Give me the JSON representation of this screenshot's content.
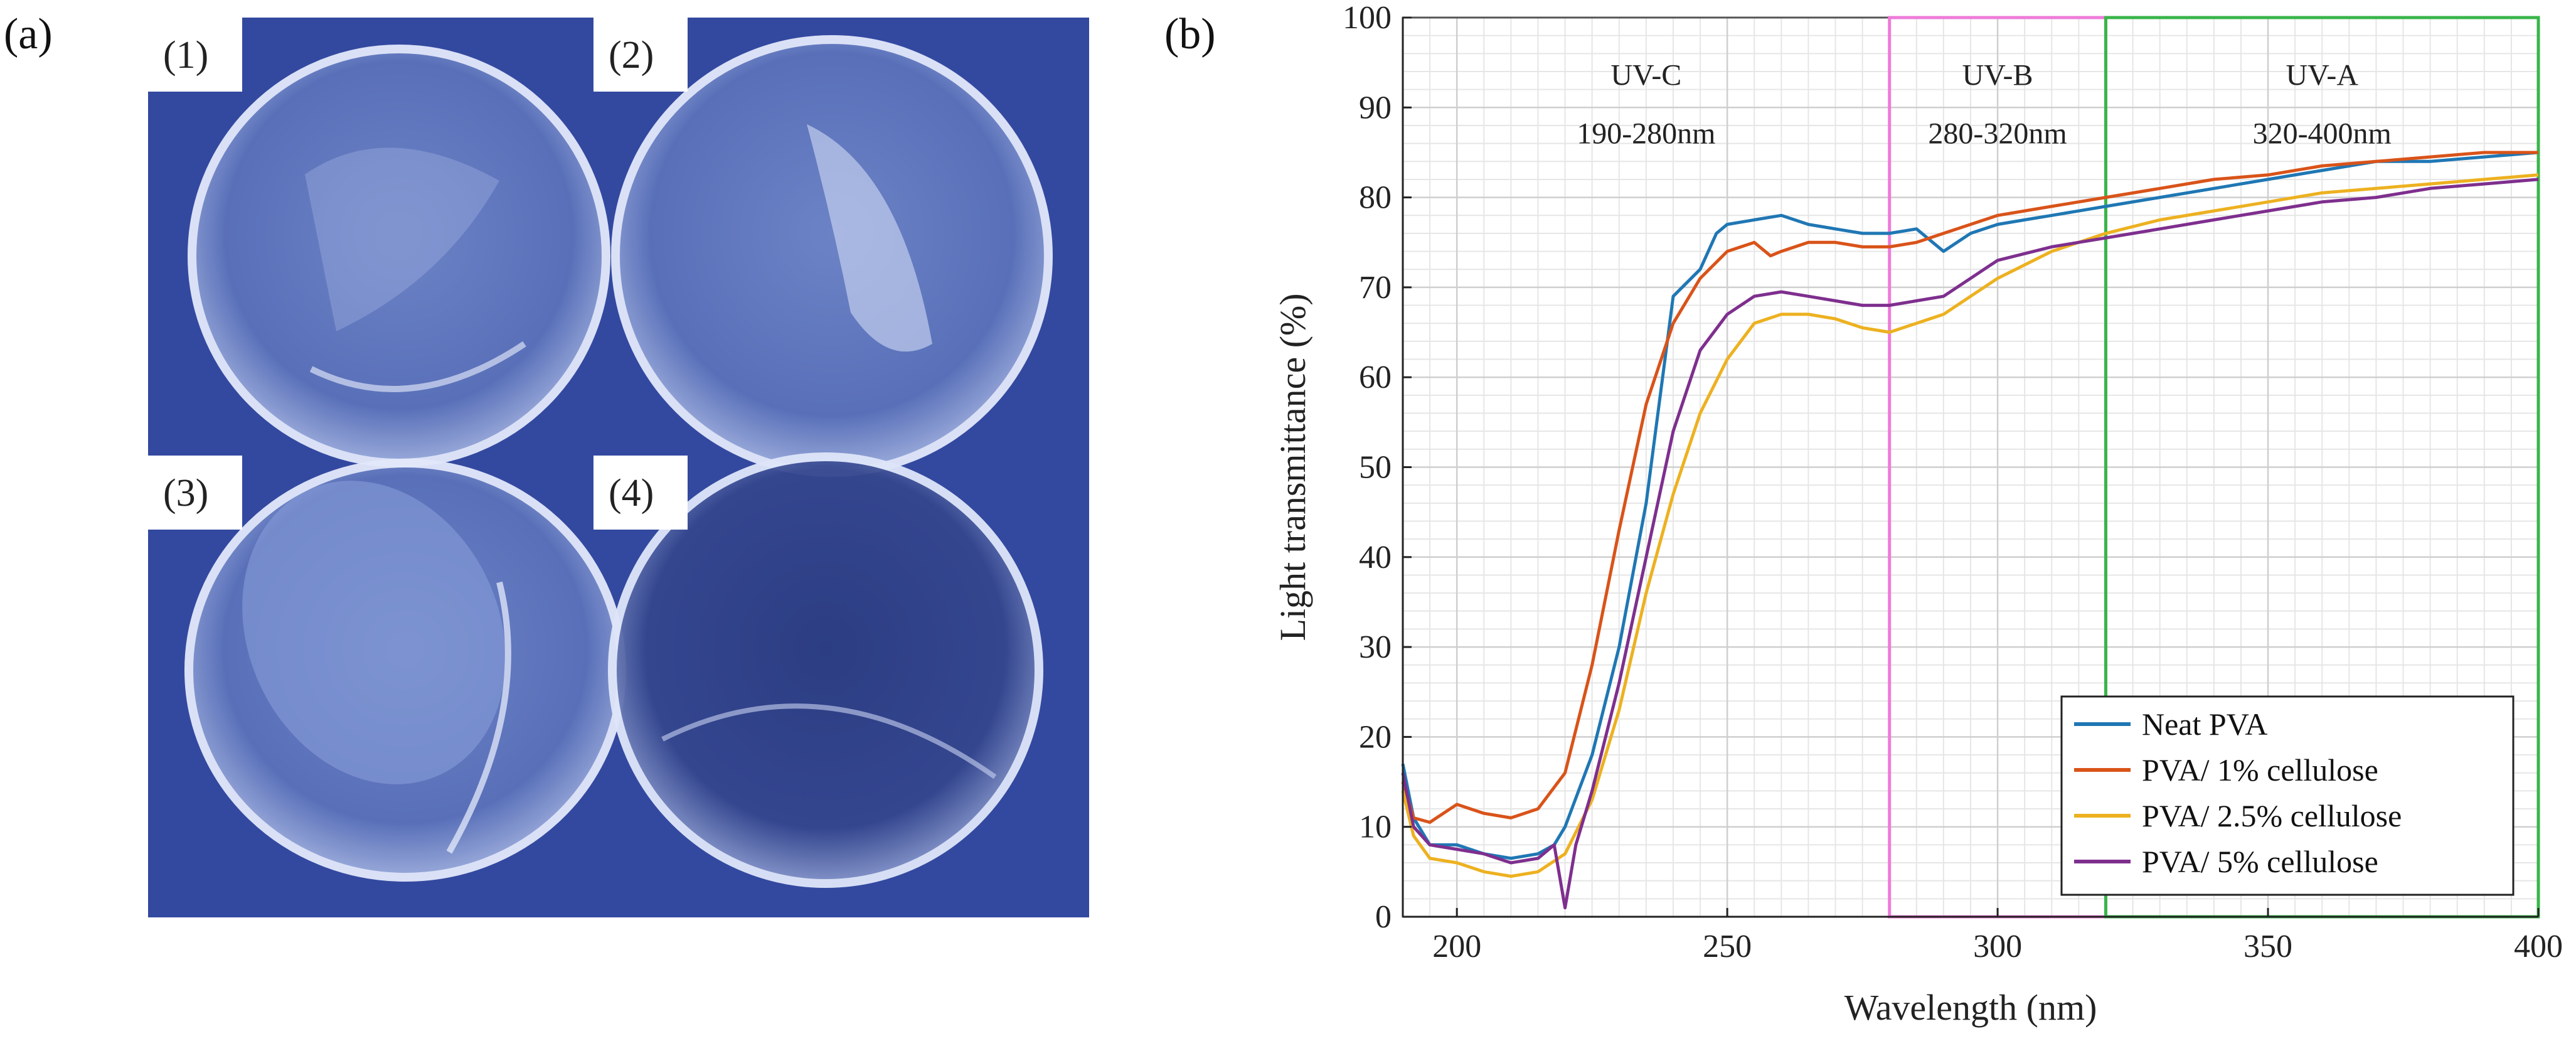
{
  "panels": {
    "a": {
      "label": "(a)",
      "sample_labels": [
        "(1)",
        "(2)",
        "(3)",
        "(4)"
      ]
    },
    "b": {
      "label": "(b)"
    }
  },
  "colors": {
    "photo_background": "#3349a0",
    "uvb_border": "#ee7bd9",
    "uva_border": "#39b54a"
  },
  "chart_data": {
    "type": "line",
    "xlabel": "Wavelength (nm)",
    "ylabel": "Light transmittance (%)",
    "xlim": [
      190,
      400
    ],
    "ylim": [
      0,
      100
    ],
    "xticks": [
      200,
      250,
      300,
      350,
      400
    ],
    "yticks": [
      0,
      10,
      20,
      30,
      40,
      50,
      60,
      70,
      80,
      90,
      100
    ],
    "grid": true,
    "legend_position": "bottom-right",
    "regions": [
      {
        "name": "UV-C",
        "range_label": "190-280nm",
        "start": 190,
        "end": 280,
        "color": "#555555"
      },
      {
        "name": "UV-B",
        "range_label": "280-320nm",
        "start": 280,
        "end": 320,
        "color": "#ee7bd9"
      },
      {
        "name": "UV-A",
        "range_label": "320-400nm",
        "start": 320,
        "end": 400,
        "color": "#39b54a"
      }
    ],
    "series": [
      {
        "name": "Neat PVA",
        "color": "#1f77b4",
        "x": [
          190,
          192,
          195,
          200,
          205,
          210,
          215,
          218,
          220,
          225,
          230,
          235,
          240,
          245,
          248,
          250,
          255,
          260,
          265,
          270,
          275,
          280,
          285,
          288,
          290,
          295,
          300,
          305,
          310,
          320,
          330,
          340,
          350,
          360,
          370,
          380,
          390,
          400
        ],
        "y": [
          17,
          11,
          8,
          8,
          7,
          6.5,
          7,
          8,
          10,
          18,
          30,
          46,
          69,
          72,
          76,
          77,
          77.5,
          78,
          77,
          76.5,
          76,
          76,
          76.5,
          75,
          74,
          76,
          77,
          77.5,
          78,
          79,
          80,
          81,
          82,
          83,
          84,
          84,
          84.5,
          85
        ]
      },
      {
        "name": "PVA/ 1% cellulose",
        "color": "#d95319",
        "x": [
          190,
          192,
          195,
          200,
          205,
          210,
          215,
          220,
          225,
          230,
          235,
          240,
          245,
          250,
          255,
          258,
          260,
          265,
          270,
          275,
          280,
          285,
          290,
          295,
          300,
          310,
          320,
          330,
          340,
          350,
          360,
          370,
          380,
          390,
          400
        ],
        "y": [
          15,
          11,
          10.5,
          12.5,
          11.5,
          11,
          12,
          16,
          28,
          43,
          57,
          66,
          71,
          74,
          75,
          73.5,
          74,
          75,
          75,
          74.5,
          74.5,
          75,
          76,
          77,
          78,
          79,
          80,
          81,
          82,
          82.5,
          83.5,
          84,
          84.5,
          85,
          85
        ]
      },
      {
        "name": "PVA/ 2.5% cellulose",
        "color": "#edb120",
        "x": [
          190,
          192,
          195,
          200,
          205,
          210,
          215,
          220,
          225,
          230,
          235,
          240,
          245,
          250,
          255,
          260,
          265,
          270,
          275,
          280,
          285,
          290,
          295,
          300,
          305,
          310,
          320,
          330,
          340,
          350,
          360,
          370,
          380,
          390,
          400
        ],
        "y": [
          14,
          9,
          6.5,
          6,
          5,
          4.5,
          5,
          7,
          13,
          23,
          36,
          47,
          56,
          62,
          66,
          67,
          67,
          66.5,
          65.5,
          65,
          66,
          67,
          69,
          71,
          72.5,
          74,
          76,
          77.5,
          78.5,
          79.5,
          80.5,
          81,
          81.5,
          82,
          82.5
        ]
      },
      {
        "name": "PVA/ 5% cellulose",
        "color": "#7e2f8e",
        "x": [
          190,
          192,
          195,
          200,
          205,
          210,
          215,
          218,
          220,
          222,
          225,
          230,
          235,
          240,
          245,
          250,
          255,
          260,
          265,
          270,
          275,
          280,
          285,
          290,
          295,
          300,
          310,
          320,
          330,
          340,
          350,
          360,
          370,
          380,
          390,
          400
        ],
        "y": [
          16,
          10,
          8,
          7.5,
          7,
          6,
          6.5,
          8,
          1,
          8,
          14,
          26,
          40,
          54,
          63,
          67,
          69,
          69.5,
          69,
          68.5,
          68,
          68,
          68.5,
          69,
          71,
          73,
          74.5,
          75.5,
          76.5,
          77.5,
          78.5,
          79.5,
          80,
          81,
          81.5,
          82
        ]
      }
    ]
  }
}
